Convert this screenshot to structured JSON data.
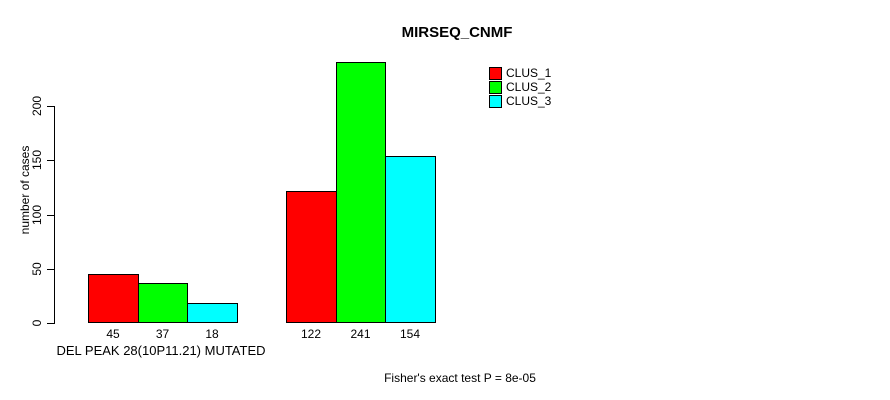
{
  "chart_data": {
    "type": "bar",
    "title": "MIRSEQ_CNMF",
    "ylabel": "number of cases",
    "xlabel": "DEL PEAK 28(10P11.21) MUTATED",
    "annotation": "Fisher's exact test P = 8e-05",
    "group_count": 2,
    "series": [
      {
        "name": "CLUS_1",
        "color": "#ff0000",
        "values": [
          45,
          122
        ]
      },
      {
        "name": "CLUS_2",
        "color": "#00ff00",
        "values": [
          37,
          241
        ]
      },
      {
        "name": "CLUS_3",
        "color": "#00ffff",
        "values": [
          18,
          154
        ]
      }
    ],
    "bar_value_labels_shown": true,
    "y_ticks": [
      0,
      50,
      100,
      150,
      200
    ],
    "ylim": [
      0,
      245
    ],
    "grid": false,
    "legend_position": "top-right",
    "colors": {
      "axis": "#000000",
      "bar_border": "#000000",
      "background": "#ffffff"
    }
  }
}
